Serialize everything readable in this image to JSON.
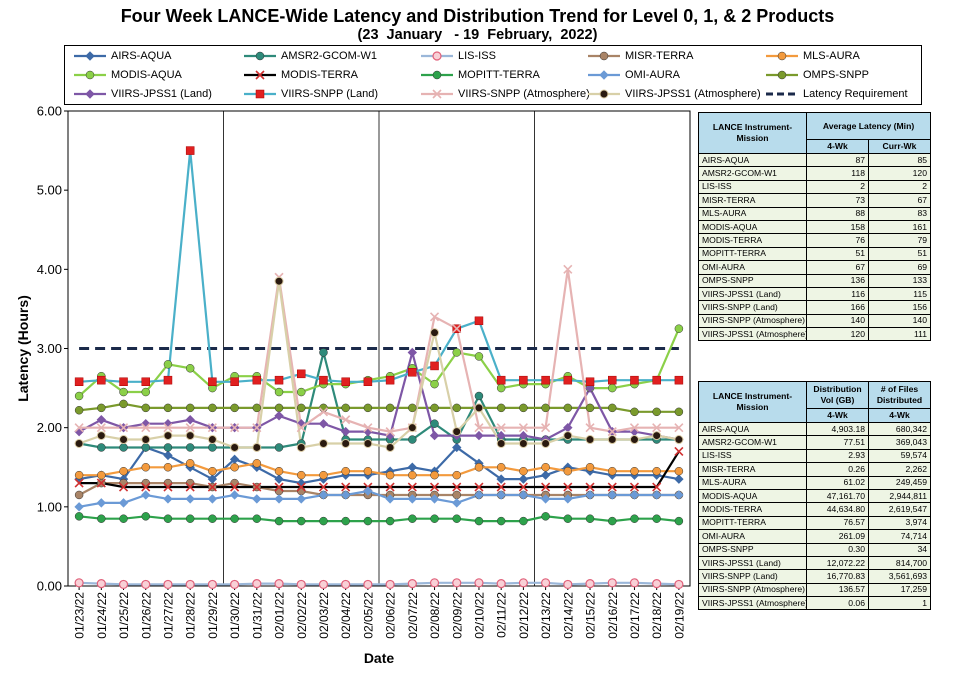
{
  "chart_data": {
    "type": "line",
    "title": "Four Week LANCE-Wide Latency and Distribution Trend for Level 0, 1, & 2 Products",
    "subtitle": "(23  January   - 19  February,  2022)",
    "xlabel": "Date",
    "ylabel": "Latency (Hours)",
    "ylim": [
      0,
      6
    ],
    "yticks": [
      "0.00",
      "1.00",
      "2.00",
      "3.00",
      "4.00",
      "5.00",
      "6.00"
    ],
    "grid": "vertical weekly lines",
    "legend_position": "top",
    "categories": [
      "01/23/22",
      "01/24/22",
      "01/25/22",
      "01/26/22",
      "01/27/22",
      "01/28/22",
      "01/29/22",
      "01/30/22",
      "01/31/22",
      "02/01/22",
      "02/02/22",
      "02/03/22",
      "02/04/22",
      "02/05/22",
      "02/06/22",
      "02/07/22",
      "02/08/22",
      "02/09/22",
      "02/10/22",
      "02/11/22",
      "02/12/22",
      "02/13/22",
      "02/14/22",
      "02/15/22",
      "02/16/22",
      "02/17/22",
      "02/18/22",
      "02/19/22"
    ],
    "series": [
      {
        "name": "AIRS-AQUA",
        "color": "#3d6aa7",
        "marker": "diamond",
        "values": [
          1.35,
          1.4,
          1.35,
          1.75,
          1.65,
          1.5,
          1.35,
          1.6,
          1.5,
          1.35,
          1.3,
          1.35,
          1.4,
          1.4,
          1.45,
          1.5,
          1.45,
          1.75,
          1.55,
          1.35,
          1.35,
          1.4,
          1.5,
          1.45,
          1.4,
          1.4,
          1.4,
          1.35
        ]
      },
      {
        "name": "AMSR2-GCOM-W1",
        "color": "#2e8a7a",
        "marker": "circle",
        "values": [
          1.8,
          1.75,
          1.75,
          1.75,
          1.75,
          1.75,
          1.75,
          1.75,
          1.75,
          1.75,
          1.8,
          2.95,
          1.85,
          1.85,
          1.85,
          1.85,
          2.05,
          1.85,
          2.4,
          1.85,
          1.85,
          1.85,
          1.85,
          1.85,
          1.85,
          1.85,
          1.85,
          1.85
        ]
      },
      {
        "name": "LIS-ISS",
        "color": "#9bb7d9",
        "marker": "circle-open",
        "values": [
          0.04,
          0.03,
          0.02,
          0.02,
          0.02,
          0.02,
          0.02,
          0.02,
          0.03,
          0.03,
          0.02,
          0.02,
          0.02,
          0.02,
          0.02,
          0.03,
          0.04,
          0.04,
          0.04,
          0.03,
          0.04,
          0.04,
          0.02,
          0.03,
          0.04,
          0.04,
          0.03,
          0.02
        ]
      },
      {
        "name": "MISR-TERRA",
        "color": "#a98467",
        "marker": "circle",
        "values": [
          1.15,
          1.3,
          1.3,
          1.3,
          1.3,
          1.3,
          1.25,
          1.3,
          1.25,
          1.2,
          1.2,
          1.15,
          1.15,
          1.15,
          1.15,
          1.15,
          1.15,
          1.15,
          1.15,
          1.15,
          1.15,
          1.15,
          1.15,
          1.15,
          1.15,
          1.15,
          1.15,
          1.15
        ]
      },
      {
        "name": "MLS-AURA",
        "color": "#f39a3d",
        "marker": "circle",
        "values": [
          1.4,
          1.4,
          1.45,
          1.5,
          1.5,
          1.55,
          1.45,
          1.5,
          1.55,
          1.45,
          1.4,
          1.4,
          1.45,
          1.45,
          1.4,
          1.4,
          1.4,
          1.4,
          1.5,
          1.5,
          1.45,
          1.5,
          1.45,
          1.5,
          1.45,
          1.45,
          1.45,
          1.45
        ]
      },
      {
        "name": "MODIS-AQUA",
        "color": "#8bd048",
        "marker": "circle",
        "values": [
          2.4,
          2.65,
          2.45,
          2.45,
          2.8,
          2.75,
          2.5,
          2.65,
          2.65,
          2.45,
          2.45,
          2.55,
          2.55,
          2.6,
          2.65,
          2.75,
          2.55,
          2.95,
          2.9,
          2.5,
          2.55,
          2.55,
          2.65,
          2.5,
          2.5,
          2.55,
          2.6,
          3.25
        ]
      },
      {
        "name": "MODIS-TERRA",
        "color": "#000000",
        "marker": "x",
        "values": [
          1.3,
          1.3,
          1.25,
          1.25,
          1.25,
          1.25,
          1.25,
          1.25,
          1.25,
          1.25,
          1.25,
          1.25,
          1.25,
          1.25,
          1.25,
          1.25,
          1.25,
          1.25,
          1.25,
          1.25,
          1.25,
          1.25,
          1.25,
          1.25,
          1.25,
          1.25,
          1.25,
          1.7
        ]
      },
      {
        "name": "MOPITT-TERRA",
        "color": "#2da24b",
        "marker": "circle",
        "values": [
          0.88,
          0.85,
          0.85,
          0.88,
          0.85,
          0.85,
          0.85,
          0.85,
          0.85,
          0.82,
          0.82,
          0.82,
          0.82,
          0.82,
          0.82,
          0.85,
          0.85,
          0.85,
          0.82,
          0.82,
          0.82,
          0.88,
          0.85,
          0.85,
          0.82,
          0.85,
          0.85,
          0.82
        ]
      },
      {
        "name": "OMI-AURA",
        "color": "#6b9ad6",
        "marker": "diamond",
        "values": [
          1.0,
          1.05,
          1.05,
          1.15,
          1.1,
          1.1,
          1.1,
          1.15,
          1.1,
          1.1,
          1.1,
          1.15,
          1.15,
          1.2,
          1.1,
          1.1,
          1.1,
          1.05,
          1.15,
          1.15,
          1.15,
          1.1,
          1.1,
          1.15,
          1.15,
          1.15,
          1.15,
          1.15
        ]
      },
      {
        "name": "OMPS-SNPP",
        "color": "#7a9a2c",
        "marker": "circle",
        "values": [
          2.22,
          2.25,
          2.3,
          2.25,
          2.25,
          2.25,
          2.25,
          2.25,
          2.25,
          2.25,
          2.25,
          2.25,
          2.25,
          2.25,
          2.25,
          2.25,
          2.25,
          2.25,
          2.25,
          2.25,
          2.25,
          2.25,
          2.25,
          2.25,
          2.25,
          2.2,
          2.2,
          2.2
        ]
      },
      {
        "name": "VIIRS-JPSS1 (Land)",
        "color": "#7e57a6",
        "marker": "diamond",
        "values": [
          1.95,
          2.1,
          2.0,
          2.05,
          2.05,
          2.1,
          2.0,
          2.0,
          2.0,
          2.15,
          2.05,
          2.05,
          1.95,
          1.95,
          1.9,
          2.95,
          1.9,
          1.9,
          1.9,
          1.9,
          1.9,
          1.85,
          2.0,
          2.5,
          1.95,
          1.95,
          1.9,
          1.85
        ]
      },
      {
        "name": "VIIRS-SNPP (Land)",
        "color": "#4ab0c9",
        "marker": "square-red",
        "values": [
          2.58,
          2.6,
          2.58,
          2.58,
          2.6,
          5.5,
          2.58,
          2.58,
          2.6,
          2.6,
          2.68,
          2.6,
          2.58,
          2.58,
          2.6,
          2.7,
          2.78,
          3.25,
          3.35,
          2.6,
          2.6,
          2.6,
          2.6,
          2.58,
          2.6,
          2.6,
          2.6,
          2.6
        ]
      },
      {
        "name": "VIIRS-SNPP (Atmosphere)",
        "color": "#e6b3b3",
        "marker": "x",
        "values": [
          2.0,
          2.0,
          2.0,
          2.0,
          2.0,
          2.0,
          2.0,
          2.0,
          2.0,
          3.9,
          2.0,
          2.2,
          2.1,
          2.0,
          1.95,
          2.0,
          3.4,
          3.25,
          2.0,
          2.0,
          2.0,
          2.0,
          4.0,
          2.0,
          1.95,
          2.0,
          2.0,
          2.0
        ]
      },
      {
        "name": "VIIRS-JPSS1 (Atmosphere)",
        "color": "#d8d0a8",
        "marker": "circle-dark",
        "values": [
          1.8,
          1.9,
          1.85,
          1.85,
          1.9,
          1.9,
          1.85,
          1.75,
          1.75,
          3.85,
          1.75,
          1.8,
          1.8,
          1.8,
          1.75,
          2.0,
          3.2,
          1.95,
          2.25,
          1.8,
          1.8,
          1.8,
          1.9,
          1.85,
          1.85,
          1.85,
          1.9,
          1.85
        ]
      },
      {
        "name": "Latency Requirement",
        "color": "#1b2a4a",
        "marker": "dashed",
        "values": [
          3,
          3,
          3,
          3,
          3,
          3,
          3,
          3,
          3,
          3,
          3,
          3,
          3,
          3,
          3,
          3,
          3,
          3,
          3,
          3,
          3,
          3,
          3,
          3,
          3,
          3,
          3,
          3
        ]
      }
    ]
  },
  "latency_table": {
    "headers": [
      "LANCE Instrument-Mission",
      "Average Latency (Min)",
      "4-Wk",
      "Curr-Wk"
    ],
    "rows": [
      [
        "AIRS-AQUA",
        "87",
        "85"
      ],
      [
        "AMSR2-GCOM-W1",
        "118",
        "120"
      ],
      [
        "LIS-ISS",
        "2",
        "2"
      ],
      [
        "MISR-TERRA",
        "73",
        "67"
      ],
      [
        "MLS-AURA",
        "88",
        "83"
      ],
      [
        "MODIS-AQUA",
        "158",
        "161"
      ],
      [
        "MODIS-TERRA",
        "76",
        "79"
      ],
      [
        "MOPITT-TERRA",
        "51",
        "51"
      ],
      [
        "OMI-AURA",
        "67",
        "69"
      ],
      [
        "OMPS-SNPP",
        "136",
        "133"
      ],
      [
        "VIIRS-JPSS1 (Land)",
        "116",
        "115"
      ],
      [
        "VIIRS-SNPP (Land)",
        "166",
        "156"
      ],
      [
        "VIIRS-SNPP (Atmosphere)",
        "140",
        "140"
      ],
      [
        "VIIRS-JPSS1 (Atmosphere)",
        "120",
        "111"
      ]
    ]
  },
  "distribution_table": {
    "headers": [
      "LANCE Instrument-Mission",
      "Distribution Vol (GB)",
      "# of Files Distributed",
      "4-Wk",
      "4-Wk"
    ],
    "rows": [
      [
        "AIRS-AQUA",
        "4,903.18",
        "680,342"
      ],
      [
        "AMSR2-GCOM-W1",
        "77.51",
        "369,043"
      ],
      [
        "LIS-ISS",
        "2.93",
        "59,574"
      ],
      [
        "MISR-TERRA",
        "0.26",
        "2,262"
      ],
      [
        "MLS-AURA",
        "61.02",
        "249,459"
      ],
      [
        "MODIS-AQUA",
        "47,161.70",
        "2,944,811"
      ],
      [
        "MODIS-TERRA",
        "44,634.80",
        "2,619,547"
      ],
      [
        "MOPITT-TERRA",
        "76.57",
        "3,974"
      ],
      [
        "OMI-AURA",
        "261.09",
        "74,714"
      ],
      [
        "OMPS-SNPP",
        "0.30",
        "34"
      ],
      [
        "VIIRS-JPSS1 (Land)",
        "12,072.22",
        "814,700"
      ],
      [
        "VIIRS-SNPP (Land)",
        "16,770.83",
        "3,561,693"
      ],
      [
        "VIIRS-SNPP (Atmosphere)",
        "136.57",
        "17,259"
      ],
      [
        "VIIRS-JPSS1 (Atmosphere)",
        "0.06",
        "1"
      ]
    ]
  }
}
